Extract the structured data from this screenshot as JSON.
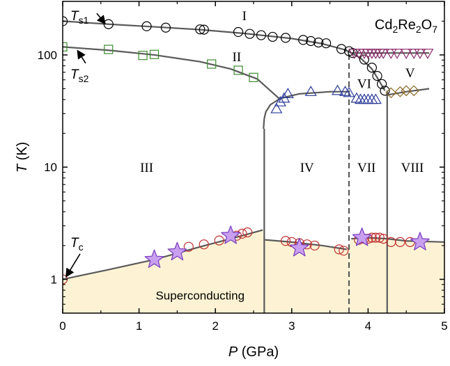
{
  "chart_data": {
    "type": "scatter",
    "title": "Cd2Re2O7",
    "title_parts": {
      "a": "Cd",
      "a_sub": "2",
      "b": "Re",
      "b_sub": "2",
      "c": "O",
      "c_sub": "7"
    },
    "xlabel": {
      "italic": "P",
      "rest": " (GPa)"
    },
    "ylabel": {
      "italic": "T",
      "rest": " (K)"
    },
    "xlim": [
      0,
      5
    ],
    "ylim": [
      0.5,
      300
    ],
    "yscale": "log",
    "x_ticks": [
      0,
      1,
      2,
      3,
      4,
      5
    ],
    "x_tick_labels": [
      "0",
      "1",
      "2",
      "3",
      "4",
      "5"
    ],
    "y_ticks": [
      1,
      10,
      100
    ],
    "y_tick_labels": [
      "1",
      "10",
      "100"
    ],
    "series": [
      {
        "id": "ts1",
        "marker": "circle",
        "color": "#000000",
        "x": [
          0.0,
          0.6,
          1.1,
          1.35,
          1.8,
          1.85,
          2.3,
          2.45,
          2.6,
          2.75,
          2.92,
          3.15,
          3.25,
          3.35,
          3.45,
          3.65,
          3.75,
          3.8,
          3.95,
          4.05,
          4.12,
          4.18,
          4.22
        ],
        "y": [
          200,
          188,
          180,
          175,
          169,
          168,
          160,
          154,
          150,
          145,
          142,
          136,
          133,
          129,
          127,
          113,
          108,
          104,
          91,
          77,
          65,
          55,
          48
        ]
      },
      {
        "id": "ts2",
        "marker": "square",
        "color": "#3b8a2e",
        "x": [
          0.0,
          0.6,
          1.05,
          1.2,
          1.95,
          2.3,
          2.5
        ],
        "y": [
          118,
          112,
          99,
          101,
          83,
          73,
          63
        ]
      },
      {
        "id": "triangle-up",
        "marker": "triangle-up",
        "color": "#2b3a9a",
        "x": [
          2.8,
          2.85,
          2.9,
          2.95,
          3.25,
          3.6,
          3.7,
          3.75,
          3.85,
          3.9,
          3.95,
          4.0,
          4.05,
          4.1
        ],
        "y": [
          33,
          38,
          41,
          45,
          47,
          48,
          47,
          46,
          41,
          40,
          40,
          40,
          40,
          40
        ]
      },
      {
        "id": "triangle-down",
        "marker": "triangle-down",
        "color": "#8a2a6a",
        "x": [
          3.82,
          3.88,
          3.95,
          4.0,
          4.05,
          4.1,
          4.15,
          4.2,
          4.3,
          4.38,
          4.5,
          4.6,
          4.68,
          4.78
        ],
        "y": [
          104,
          104,
          104,
          104,
          104,
          104,
          104,
          104,
          104,
          104,
          104,
          104,
          104,
          104
        ]
      },
      {
        "id": "diamond",
        "marker": "diamond",
        "color": "#8a6a2a",
        "x": [
          4.3,
          4.42,
          4.5,
          4.6
        ],
        "y": [
          46,
          47,
          48,
          48
        ]
      },
      {
        "id": "tc-circle",
        "marker": "circle",
        "color": "#c03030",
        "x": [
          0.0,
          1.65,
          1.85,
          2.05,
          2.28,
          2.35,
          2.42,
          2.92,
          3.0,
          3.1,
          3.2,
          3.3,
          3.62,
          3.68,
          3.88,
          3.95,
          4.0,
          4.05,
          4.1,
          4.15,
          4.2,
          4.3,
          4.42,
          4.55
        ],
        "y": [
          1.0,
          1.95,
          2.05,
          2.22,
          2.45,
          2.55,
          2.62,
          2.2,
          2.15,
          2.1,
          2.05,
          2.0,
          1.85,
          1.8,
          2.25,
          2.3,
          2.3,
          2.35,
          2.35,
          2.35,
          2.3,
          2.15,
          2.15,
          2.15
        ]
      },
      {
        "id": "tc-star",
        "marker": "star",
        "color": "#a264d8",
        "x": [
          1.2,
          1.5,
          2.2,
          3.1,
          3.92,
          4.68
        ],
        "y": [
          1.5,
          1.75,
          2.45,
          1.9,
          2.35,
          2.15
        ]
      }
    ],
    "lines": [
      {
        "id": "ts1-line",
        "style": "solid",
        "x": [
          0.0,
          0.6,
          1.2,
          1.8,
          2.4,
          3.0,
          3.4,
          3.7,
          3.9,
          4.05,
          4.15,
          4.22
        ],
        "y": [
          200,
          188,
          178,
          168,
          155,
          140,
          126,
          111,
          94,
          75,
          58,
          48
        ]
      },
      {
        "id": "ts2-line",
        "style": "solid",
        "x": [
          0.0,
          0.6,
          1.2,
          1.8,
          2.2,
          2.55,
          2.72,
          2.85
        ],
        "y": [
          118,
          110,
          100,
          87,
          75,
          61,
          48,
          40
        ]
      },
      {
        "id": "iv-line",
        "style": "solid",
        "x": [
          2.63,
          2.64,
          2.66,
          2.72,
          2.85,
          3.1,
          3.5,
          3.75
        ],
        "y": [
          22,
          27,
          31,
          36,
          41,
          45,
          47,
          47
        ]
      },
      {
        "id": "v-line",
        "style": "solid",
        "x": [
          3.78,
          4.1,
          4.5,
          4.8
        ],
        "y": [
          104,
          104,
          104,
          104
        ]
      },
      {
        "id": "viii-line",
        "style": "solid",
        "x": [
          4.25,
          4.5,
          4.8
        ],
        "y": [
          44,
          47,
          50
        ]
      },
      {
        "id": "tc-line-1",
        "style": "solid",
        "x": [
          0.0,
          0.6,
          1.2,
          1.8,
          2.3,
          2.62
        ],
        "y": [
          1.0,
          1.22,
          1.5,
          1.95,
          2.4,
          2.75
        ]
      },
      {
        "id": "tc-line-2",
        "style": "solid",
        "x": [
          2.65,
          3.0,
          3.4,
          3.72
        ],
        "y": [
          2.25,
          2.15,
          2.0,
          1.85
        ]
      },
      {
        "id": "tc-line-3",
        "style": "solid",
        "x": [
          3.78,
          4.0,
          4.25,
          4.5,
          5.0
        ],
        "y": [
          2.3,
          2.35,
          2.3,
          2.2,
          2.15
        ]
      },
      {
        "id": "boundary-iii-iv",
        "style": "solid",
        "x": [
          2.64,
          2.64
        ],
        "y": [
          0.5,
          22
        ]
      },
      {
        "id": "boundary-iv-vii",
        "style": "dashed",
        "x": [
          3.75,
          3.75
        ],
        "y": [
          0.5,
          104
        ]
      },
      {
        "id": "boundary-vii-viii",
        "style": "solid",
        "x": [
          4.25,
          4.25
        ],
        "y": [
          0.5,
          48
        ]
      }
    ],
    "superconducting_region": {
      "color": "#fdf3d4",
      "x": [
        0.0,
        0.6,
        1.2,
        1.8,
        2.3,
        2.62,
        2.65,
        3.0,
        3.4,
        3.72,
        3.78,
        4.0,
        4.25,
        4.5,
        5.0
      ],
      "y": [
        1.0,
        1.22,
        1.5,
        1.95,
        2.4,
        2.75,
        2.25,
        2.15,
        2.0,
        1.85,
        2.3,
        2.35,
        2.3,
        2.2,
        2.15
      ]
    },
    "phase_labels": [
      {
        "text": "I",
        "x": 2.38,
        "y": 225
      },
      {
        "text": "II",
        "x": 2.28,
        "y": 97
      },
      {
        "text": "III",
        "x": 1.1,
        "y": 10
      },
      {
        "text": "IV",
        "x": 3.2,
        "y": 10
      },
      {
        "text": "VII",
        "x": 3.98,
        "y": 10
      },
      {
        "text": "VIII",
        "x": 4.58,
        "y": 10
      },
      {
        "text": "VI",
        "x": 3.95,
        "y": 56
      },
      {
        "text": "V",
        "x": 4.55,
        "y": 70
      }
    ],
    "annotations": [
      {
        "id": "ts1",
        "text": "T",
        "sub": "s1",
        "x": 0.1,
        "y": 225,
        "arrow_to": [
          0.55,
          192
        ]
      },
      {
        "id": "ts2",
        "text": "T",
        "sub": "s2",
        "x": 0.1,
        "y": 68,
        "arrow_to": [
          0.2,
          108
        ]
      },
      {
        "id": "tc",
        "text": "T",
        "sub": "c",
        "x": 0.1,
        "y": 2.15,
        "arrow_to": [
          0.05,
          1.07
        ]
      }
    ],
    "region_label": {
      "text": "Superconducting",
      "x": 1.8,
      "y": 0.72
    }
  }
}
